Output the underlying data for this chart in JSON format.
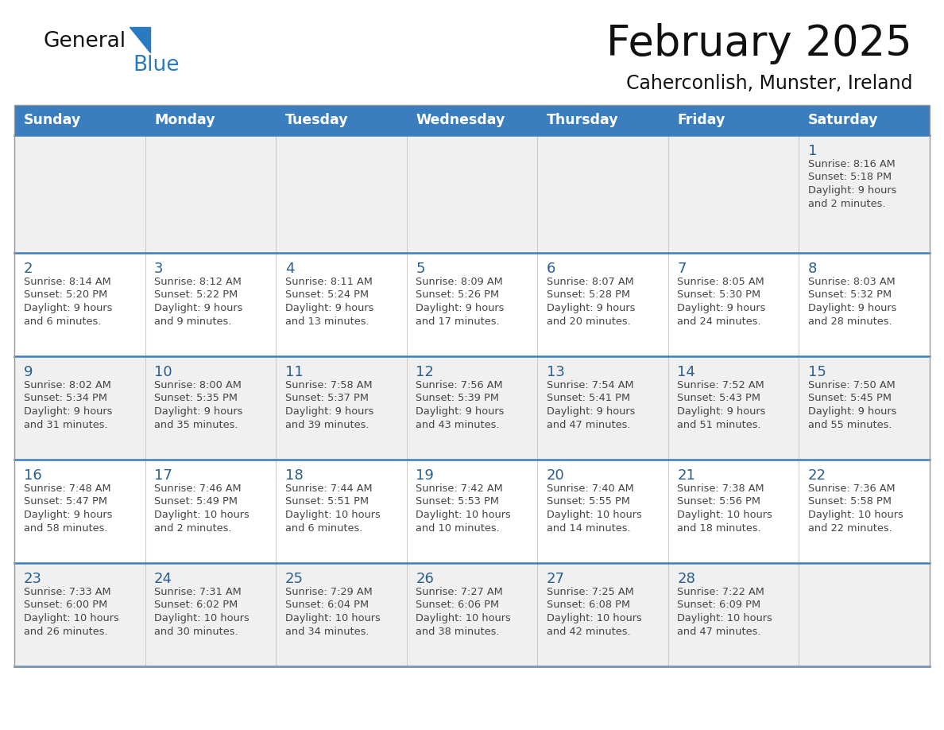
{
  "title": "February 2025",
  "subtitle": "Caherconlish, Munster, Ireland",
  "header_bg": "#3a7ebf",
  "header_text": "#ffffff",
  "day_names": [
    "Sunday",
    "Monday",
    "Tuesday",
    "Wednesday",
    "Thursday",
    "Friday",
    "Saturday"
  ],
  "row_bg_even": "#f0f0f0",
  "row_bg_odd": "#ffffff",
  "cell_border": "#cccccc",
  "row_border_color": "#3a7ebf",
  "day_num_color": "#2a5f8f",
  "info_color": "#444444",
  "logo_general_color": "#111111",
  "logo_blue_color": "#2a7abf",
  "calendar_data": [
    [
      null,
      null,
      null,
      null,
      null,
      null,
      {
        "day": 1,
        "sunrise": "8:16 AM",
        "sunset": "5:18 PM",
        "daylight_line1": "Daylight: 9 hours",
        "daylight_line2": "and 2 minutes."
      }
    ],
    [
      {
        "day": 2,
        "sunrise": "8:14 AM",
        "sunset": "5:20 PM",
        "daylight_line1": "Daylight: 9 hours",
        "daylight_line2": "and 6 minutes."
      },
      {
        "day": 3,
        "sunrise": "8:12 AM",
        "sunset": "5:22 PM",
        "daylight_line1": "Daylight: 9 hours",
        "daylight_line2": "and 9 minutes."
      },
      {
        "day": 4,
        "sunrise": "8:11 AM",
        "sunset": "5:24 PM",
        "daylight_line1": "Daylight: 9 hours",
        "daylight_line2": "and 13 minutes."
      },
      {
        "day": 5,
        "sunrise": "8:09 AM",
        "sunset": "5:26 PM",
        "daylight_line1": "Daylight: 9 hours",
        "daylight_line2": "and 17 minutes."
      },
      {
        "day": 6,
        "sunrise": "8:07 AM",
        "sunset": "5:28 PM",
        "daylight_line1": "Daylight: 9 hours",
        "daylight_line2": "and 20 minutes."
      },
      {
        "day": 7,
        "sunrise": "8:05 AM",
        "sunset": "5:30 PM",
        "daylight_line1": "Daylight: 9 hours",
        "daylight_line2": "and 24 minutes."
      },
      {
        "day": 8,
        "sunrise": "8:03 AM",
        "sunset": "5:32 PM",
        "daylight_line1": "Daylight: 9 hours",
        "daylight_line2": "and 28 minutes."
      }
    ],
    [
      {
        "day": 9,
        "sunrise": "8:02 AM",
        "sunset": "5:34 PM",
        "daylight_line1": "Daylight: 9 hours",
        "daylight_line2": "and 31 minutes."
      },
      {
        "day": 10,
        "sunrise": "8:00 AM",
        "sunset": "5:35 PM",
        "daylight_line1": "Daylight: 9 hours",
        "daylight_line2": "and 35 minutes."
      },
      {
        "day": 11,
        "sunrise": "7:58 AM",
        "sunset": "5:37 PM",
        "daylight_line1": "Daylight: 9 hours",
        "daylight_line2": "and 39 minutes."
      },
      {
        "day": 12,
        "sunrise": "7:56 AM",
        "sunset": "5:39 PM",
        "daylight_line1": "Daylight: 9 hours",
        "daylight_line2": "and 43 minutes."
      },
      {
        "day": 13,
        "sunrise": "7:54 AM",
        "sunset": "5:41 PM",
        "daylight_line1": "Daylight: 9 hours",
        "daylight_line2": "and 47 minutes."
      },
      {
        "day": 14,
        "sunrise": "7:52 AM",
        "sunset": "5:43 PM",
        "daylight_line1": "Daylight: 9 hours",
        "daylight_line2": "and 51 minutes."
      },
      {
        "day": 15,
        "sunrise": "7:50 AM",
        "sunset": "5:45 PM",
        "daylight_line1": "Daylight: 9 hours",
        "daylight_line2": "and 55 minutes."
      }
    ],
    [
      {
        "day": 16,
        "sunrise": "7:48 AM",
        "sunset": "5:47 PM",
        "daylight_line1": "Daylight: 9 hours",
        "daylight_line2": "and 58 minutes."
      },
      {
        "day": 17,
        "sunrise": "7:46 AM",
        "sunset": "5:49 PM",
        "daylight_line1": "Daylight: 10 hours",
        "daylight_line2": "and 2 minutes."
      },
      {
        "day": 18,
        "sunrise": "7:44 AM",
        "sunset": "5:51 PM",
        "daylight_line1": "Daylight: 10 hours",
        "daylight_line2": "and 6 minutes."
      },
      {
        "day": 19,
        "sunrise": "7:42 AM",
        "sunset": "5:53 PM",
        "daylight_line1": "Daylight: 10 hours",
        "daylight_line2": "and 10 minutes."
      },
      {
        "day": 20,
        "sunrise": "7:40 AM",
        "sunset": "5:55 PM",
        "daylight_line1": "Daylight: 10 hours",
        "daylight_line2": "and 14 minutes."
      },
      {
        "day": 21,
        "sunrise": "7:38 AM",
        "sunset": "5:56 PM",
        "daylight_line1": "Daylight: 10 hours",
        "daylight_line2": "and 18 minutes."
      },
      {
        "day": 22,
        "sunrise": "7:36 AM",
        "sunset": "5:58 PM",
        "daylight_line1": "Daylight: 10 hours",
        "daylight_line2": "and 22 minutes."
      }
    ],
    [
      {
        "day": 23,
        "sunrise": "7:33 AM",
        "sunset": "6:00 PM",
        "daylight_line1": "Daylight: 10 hours",
        "daylight_line2": "and 26 minutes."
      },
      {
        "day": 24,
        "sunrise": "7:31 AM",
        "sunset": "6:02 PM",
        "daylight_line1": "Daylight: 10 hours",
        "daylight_line2": "and 30 minutes."
      },
      {
        "day": 25,
        "sunrise": "7:29 AM",
        "sunset": "6:04 PM",
        "daylight_line1": "Daylight: 10 hours",
        "daylight_line2": "and 34 minutes."
      },
      {
        "day": 26,
        "sunrise": "7:27 AM",
        "sunset": "6:06 PM",
        "daylight_line1": "Daylight: 10 hours",
        "daylight_line2": "and 38 minutes."
      },
      {
        "day": 27,
        "sunrise": "7:25 AM",
        "sunset": "6:08 PM",
        "daylight_line1": "Daylight: 10 hours",
        "daylight_line2": "and 42 minutes."
      },
      {
        "day": 28,
        "sunrise": "7:22 AM",
        "sunset": "6:09 PM",
        "daylight_line1": "Daylight: 10 hours",
        "daylight_line2": "and 47 minutes."
      },
      null
    ]
  ]
}
